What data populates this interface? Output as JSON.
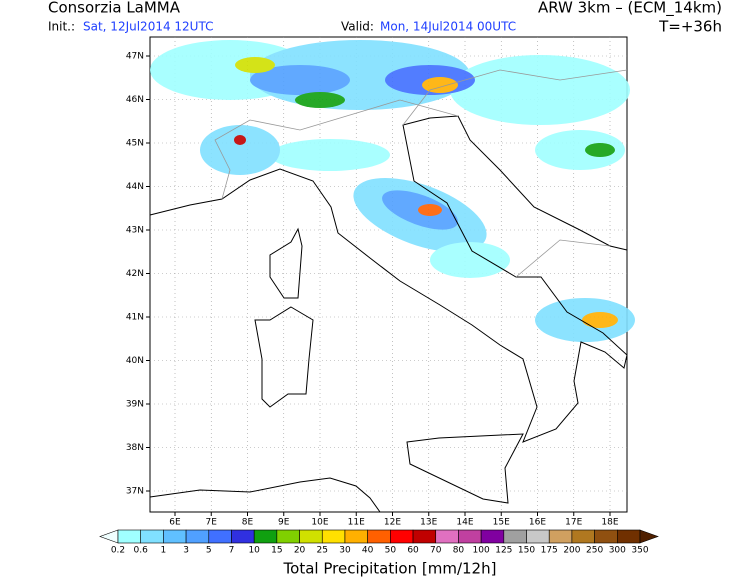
{
  "header": {
    "org": "Consorzia LaMMA",
    "init_label": "Init.:",
    "init_value": "Sat, 12Jul2014 12UTC",
    "valid_label": "Valid:",
    "valid_value": "Mon, 14Jul2014 00UTC",
    "model": "ARW 3km – (ECM_14km)",
    "lead": "T=+36h"
  },
  "map": {
    "lat_labels": [
      "47N",
      "46N",
      "45N",
      "44N",
      "43N",
      "42N",
      "41N",
      "40N",
      "39N",
      "38N",
      "37N"
    ],
    "lon_labels": [
      "6E",
      "7E",
      "8E",
      "9E",
      "10E",
      "11E",
      "12E",
      "13E",
      "14E",
      "15E",
      "16E",
      "17E",
      "18E"
    ]
  },
  "colorbar": {
    "labels": [
      "0.2",
      "0.6",
      "1",
      "3",
      "5",
      "7",
      "10",
      "15",
      "20",
      "25",
      "30",
      "40",
      "50",
      "60",
      "70",
      "80",
      "100",
      "125",
      "150",
      "175",
      "200",
      "250",
      "300",
      "350"
    ],
    "colors": [
      "#f0ffff",
      "#a0ffff",
      "#80e0ff",
      "#60c0ff",
      "#50a0ff",
      "#4070ff",
      "#3030e0",
      "#10a010",
      "#80d000",
      "#d0e000",
      "#ffe000",
      "#ffb000",
      "#ff6000",
      "#ff0000",
      "#c00000",
      "#e070c0",
      "#c040a0",
      "#8000a0",
      "#a0a0a0",
      "#c8c8c8",
      "#d0a060",
      "#b07820",
      "#905010",
      "#703000",
      "#502000"
    ],
    "title": "Total Precipitation [mm/12h]"
  }
}
